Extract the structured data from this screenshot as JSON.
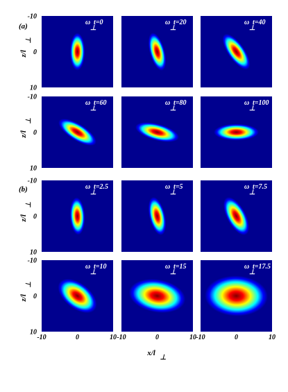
{
  "figure": {
    "group_labels": [
      "(a)",
      "(b)"
    ],
    "axis": {
      "x_label": "x/l",
      "x_label_sub": "⊥",
      "y_label": "z/l",
      "y_label_sub": "⊥",
      "range": [
        -10,
        10
      ],
      "ticks": [
        "-10",
        "0",
        "10"
      ]
    },
    "panel_label": {
      "omega": "ω",
      "omega_sub": "⊥",
      "prefix": "t="
    },
    "colormap": [
      "#00008f",
      "#0000ff",
      "#00ffff",
      "#ffff00",
      "#ff0000",
      "#800000"
    ],
    "panels": [
      {
        "group": 0,
        "row": 0,
        "col": 0,
        "t": "0",
        "sigma_x": 1.0,
        "sigma_z": 2.5,
        "tilt_deg": 0
      },
      {
        "group": 0,
        "row": 0,
        "col": 1,
        "t": "20",
        "sigma_x": 1.0,
        "sigma_z": 2.6,
        "tilt_deg": 15
      },
      {
        "group": 0,
        "row": 0,
        "col": 2,
        "t": "40",
        "sigma_x": 1.1,
        "sigma_z": 2.8,
        "tilt_deg": 35
      },
      {
        "group": 0,
        "row": 1,
        "col": 0,
        "t": "60",
        "sigma_x": 1.1,
        "sigma_z": 2.9,
        "tilt_deg": 58
      },
      {
        "group": 0,
        "row": 1,
        "col": 1,
        "t": "80",
        "sigma_x": 1.1,
        "sigma_z": 3.0,
        "tilt_deg": 75
      },
      {
        "group": 0,
        "row": 1,
        "col": 2,
        "t": "100",
        "sigma_x": 1.1,
        "sigma_z": 3.0,
        "tilt_deg": 90
      },
      {
        "group": 1,
        "row": 0,
        "col": 0,
        "t": "2.5",
        "sigma_x": 1.0,
        "sigma_z": 2.5,
        "tilt_deg": 3
      },
      {
        "group": 1,
        "row": 0,
        "col": 1,
        "t": "5",
        "sigma_x": 1.05,
        "sigma_z": 2.6,
        "tilt_deg": 13
      },
      {
        "group": 1,
        "row": 0,
        "col": 2,
        "t": "7.5",
        "sigma_x": 1.25,
        "sigma_z": 2.8,
        "tilt_deg": 28
      },
      {
        "group": 1,
        "row": 1,
        "col": 0,
        "t": "10",
        "sigma_x": 1.7,
        "sigma_z": 3.0,
        "tilt_deg": 52
      },
      {
        "group": 1,
        "row": 1,
        "col": 1,
        "t": "15",
        "sigma_x": 2.2,
        "sigma_z": 3.8,
        "tilt_deg": 80
      },
      {
        "group": 1,
        "row": 1,
        "col": 2,
        "t": "17.5",
        "sigma_x": 2.7,
        "sigma_z": 4.2,
        "tilt_deg": 88
      }
    ]
  }
}
